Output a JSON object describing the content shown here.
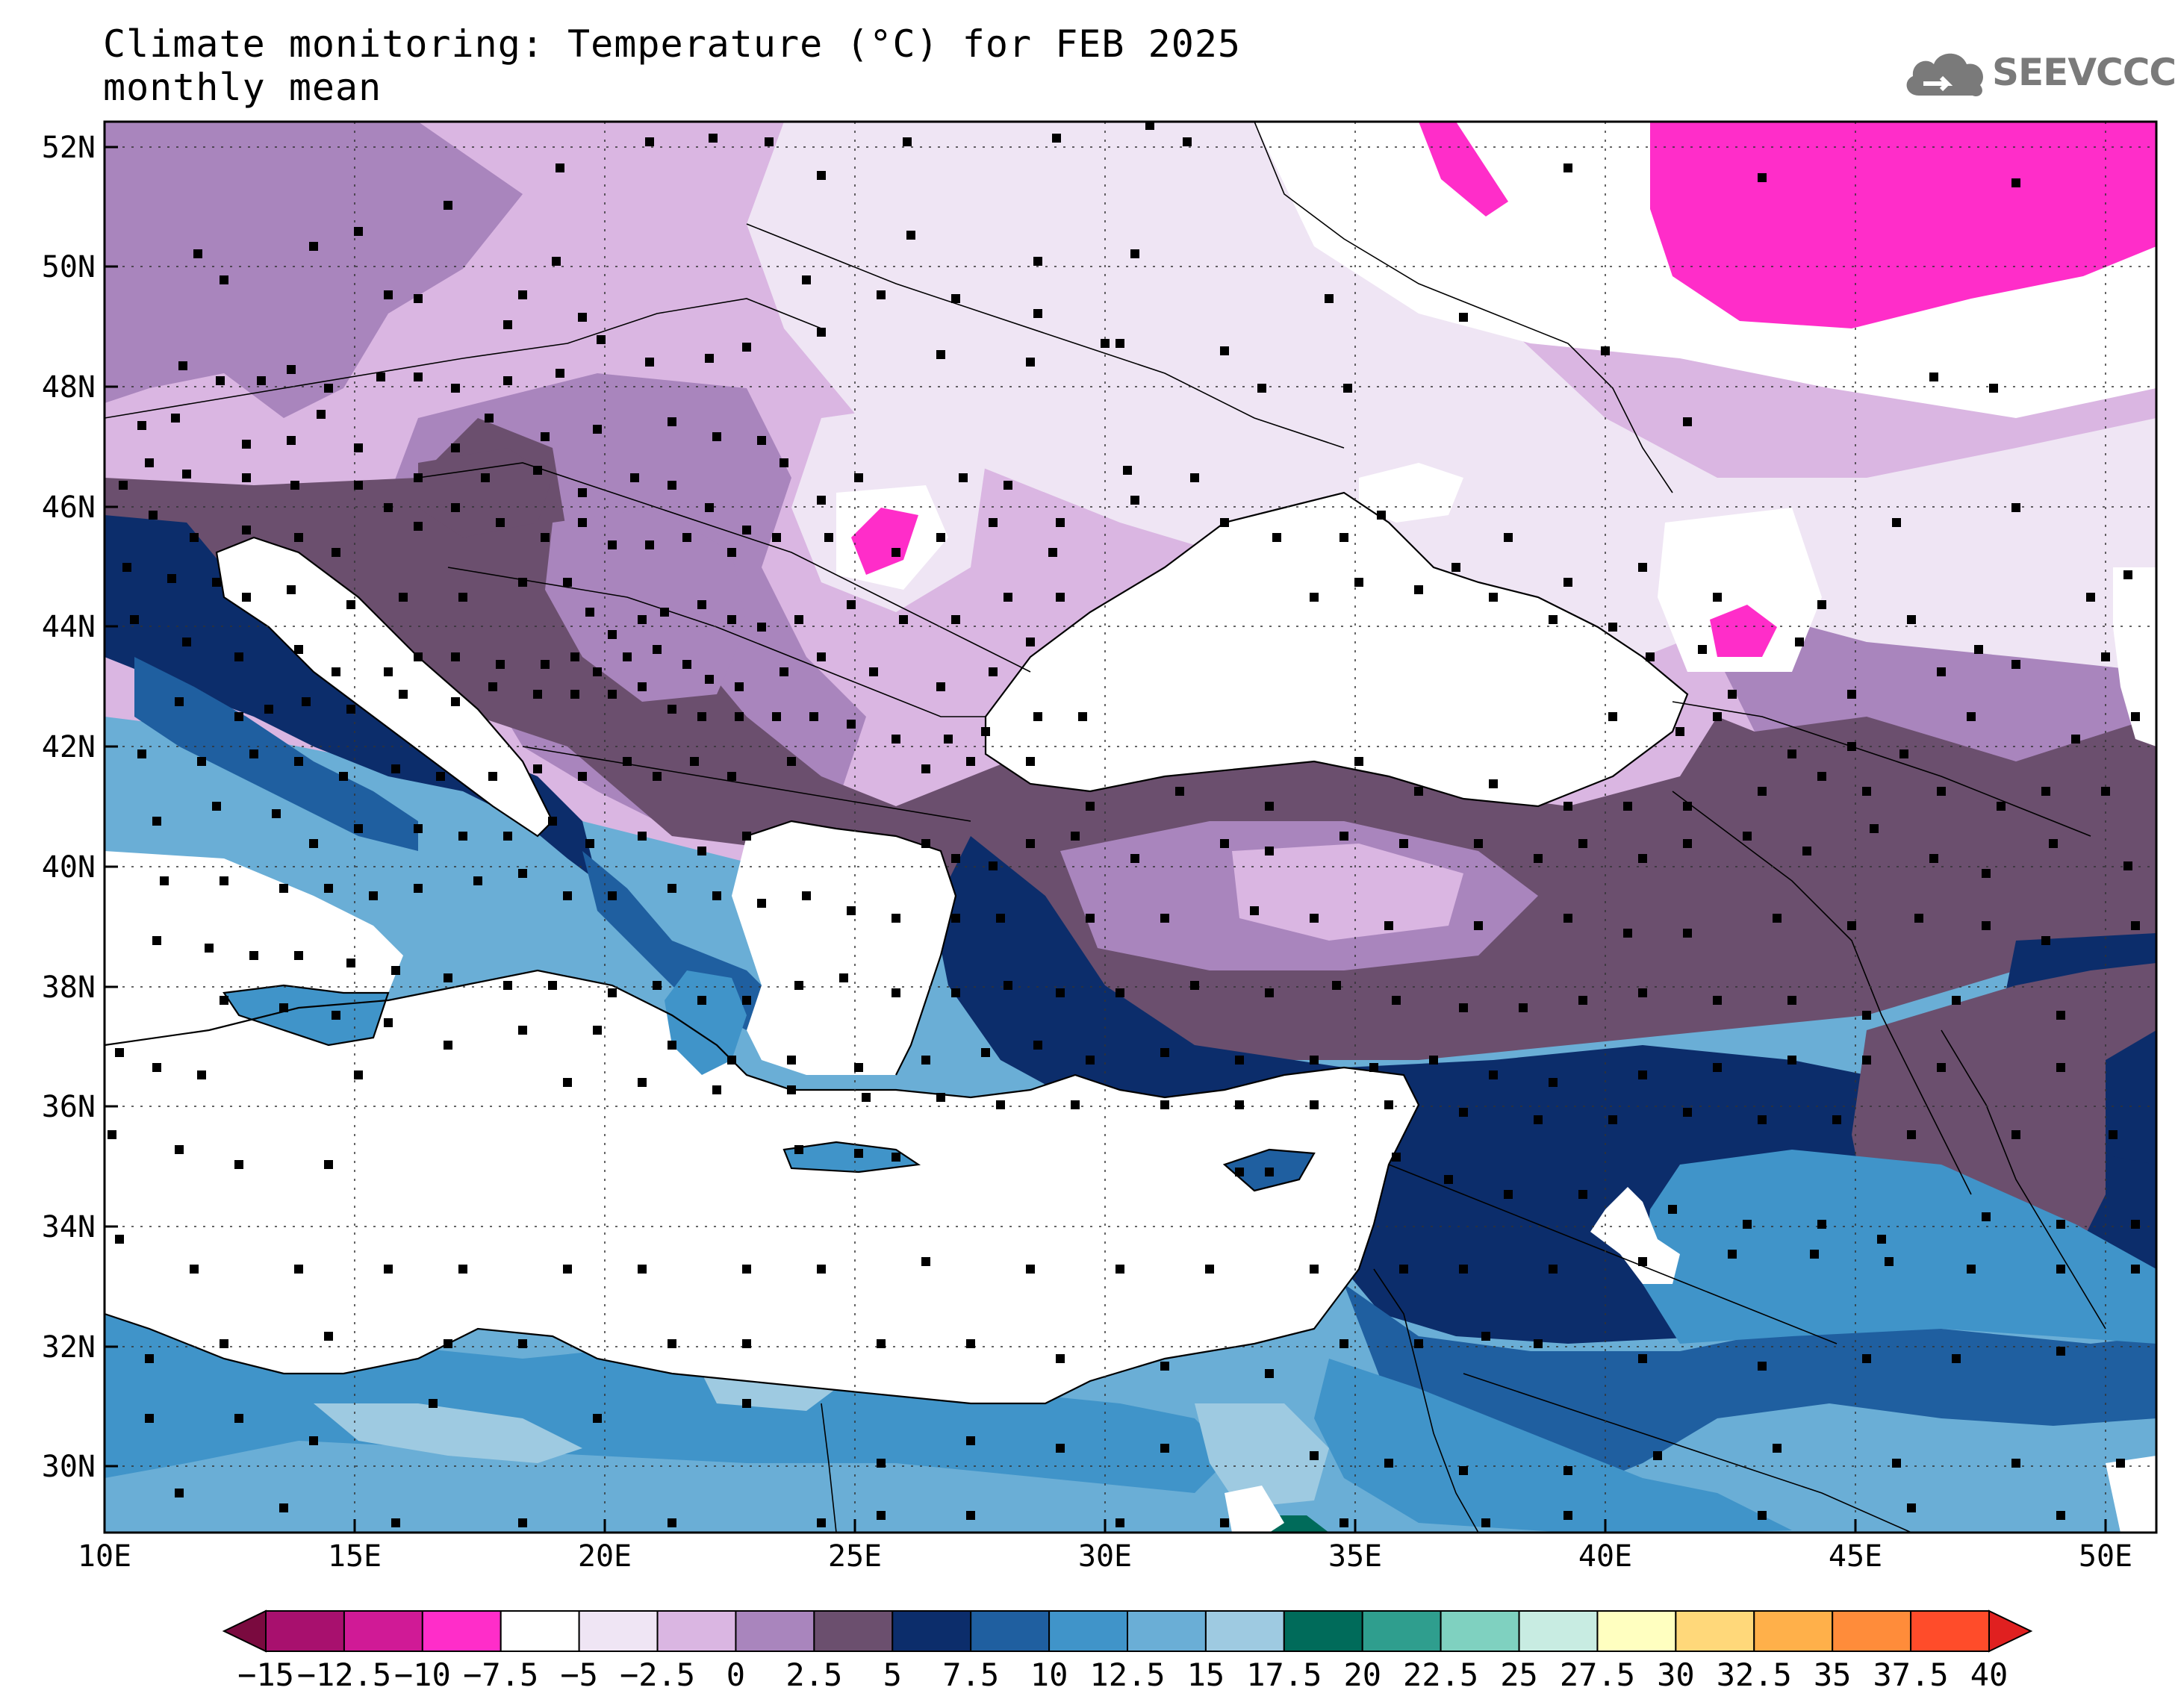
{
  "title": "Climate monitoring: Temperature (°C) for FEB 2025",
  "subtitle": "monthly mean",
  "logo": {
    "icon": "cloud-icon",
    "text": "SEEVCCC",
    "color": "#7a7a7a"
  },
  "map": {
    "lon_range": [
      10,
      51
    ],
    "lat_range": [
      29,
      52.5
    ],
    "lat_ticks": [
      "52N",
      "50N",
      "48N",
      "46N",
      "44N",
      "42N",
      "40N",
      "38N",
      "36N",
      "34N",
      "32N",
      "30N"
    ],
    "lon_ticks": [
      "10E",
      "15E",
      "20E",
      "25E",
      "30E",
      "35E",
      "40E",
      "45E",
      "50E"
    ],
    "grid": "dotted",
    "stations": "black-square-markers"
  },
  "colorbar": {
    "labels": [
      "−15",
      "−12.5",
      "−10",
      "−7.5",
      "−5",
      "−2.5",
      "0",
      "2.5",
      "5",
      "7.5",
      "10",
      "12.5",
      "15",
      "17.5",
      "20",
      "22.5",
      "25",
      "27.5",
      "30",
      "32.5",
      "35",
      "37.5",
      "40"
    ],
    "colors": [
      "#7a0a3f",
      "#a8106e",
      "#d01a96",
      "#ff2dc9",
      "#ffffff",
      "#efe5f4",
      "#dab6e2",
      "#a985bd",
      "#6b4f6e",
      "#0c2d6b",
      "#1f5fa0",
      "#4094c9",
      "#6aaed6",
      "#9ecae1",
      "#006b5a",
      "#2f9e8e",
      "#7fd1c0",
      "#c8ece2",
      "#ffffc0",
      "#ffd87a",
      "#ffb04a",
      "#ff8c3a",
      "#ff4c2a",
      "#e02020"
    ]
  }
}
